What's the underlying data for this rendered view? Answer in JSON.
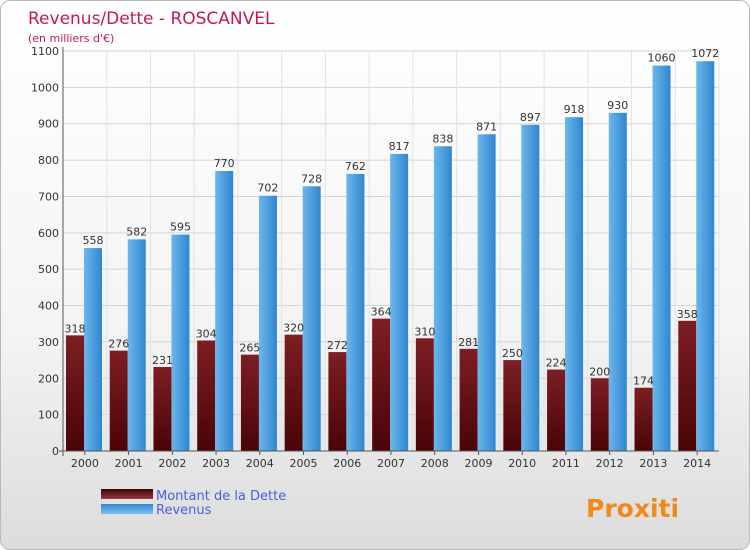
{
  "chart_data": {
    "type": "bar",
    "title": "Revenus/Dette - ROSCANVEL",
    "subtitle": "(en milliers d'€)",
    "categories": [
      "2000",
      "2001",
      "2002",
      "2003",
      "2004",
      "2005",
      "2006",
      "2007",
      "2008",
      "2009",
      "2010",
      "2011",
      "2012",
      "2013",
      "2014"
    ],
    "series": [
      {
        "name": "Montant de la Dette",
        "values": [
          318,
          276,
          231,
          304,
          265,
          320,
          272,
          364,
          310,
          281,
          250,
          224,
          200,
          174,
          358
        ]
      },
      {
        "name": "Revenus",
        "values": [
          558,
          582,
          595,
          770,
          702,
          728,
          762,
          817,
          838,
          871,
          897,
          918,
          930,
          1060,
          1072
        ]
      }
    ],
    "ylim": [
      0,
      1100
    ],
    "yticks": [
      0,
      100,
      200,
      300,
      400,
      500,
      600,
      700,
      800,
      900,
      1000,
      1100
    ],
    "grid": true,
    "legend": "bottom-left",
    "colors": {
      "debt": "#6e1418",
      "debt_light": "#a03840",
      "revenue": "#3f97da",
      "revenue_light": "#6cb6ec",
      "title": "#c2185b",
      "legend_text": "#4a5ed8"
    }
  },
  "logo": {
    "text": "Proxiti"
  }
}
